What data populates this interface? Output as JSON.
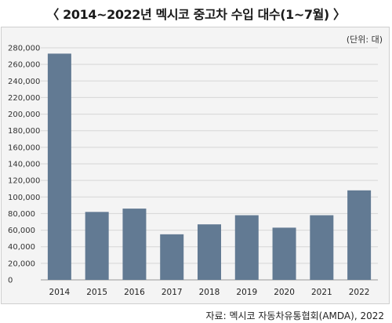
{
  "header": {
    "title": "〈 2014~2022년 멕시코 중고차 수입 대수(1~7월) 〉"
  },
  "unit_label": "(단위: 대)",
  "source_label": "자료: 멕시코 자동차유통협회(AMDA), 2022",
  "colors": {
    "bar": "#627a93",
    "grid": "#d6d6d6",
    "axis": "#9a9a9a"
  },
  "chart_data": {
    "type": "bar",
    "title": "〈 2014~2022년 멕시코 중고차 수입 대수(1~7월) 〉",
    "xlabel": "",
    "ylabel": "",
    "categories": [
      "2014",
      "2015",
      "2016",
      "2017",
      "2018",
      "2019",
      "2020",
      "2021",
      "2022"
    ],
    "values": [
      273000,
      82000,
      86000,
      55000,
      67000,
      78000,
      63000,
      78000,
      108000
    ],
    "ylim": [
      0,
      280000
    ],
    "yticks": [
      0,
      20000,
      40000,
      60000,
      80000,
      100000,
      120000,
      140000,
      160000,
      180000,
      200000,
      220000,
      240000,
      260000,
      280000
    ],
    "ytick_labels": [
      "0",
      "20,000",
      "40,000",
      "60,000",
      "80,000",
      "100,000",
      "120,000",
      "140,000",
      "160,000",
      "180,000",
      "200,000",
      "220,000",
      "240,000",
      "260,000",
      "280,000"
    ],
    "grid": true,
    "legend": "none"
  }
}
